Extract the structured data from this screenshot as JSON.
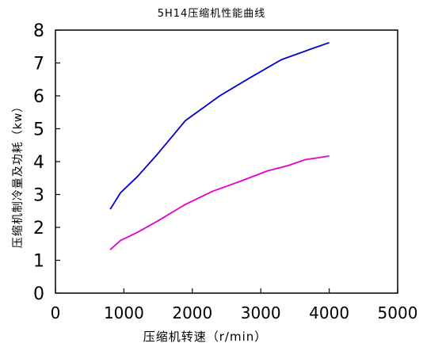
{
  "chart_data": {
    "type": "line",
    "title": "5H14压缩机性能曲线",
    "xlabel": "压缩机转速（r/min）",
    "ylabel": "压缩机制冷量及功耗（kw）",
    "xlim": [
      0,
      5000
    ],
    "ylim": [
      0,
      8
    ],
    "xticks": [
      "0",
      "1000",
      "2000",
      "3000",
      "4000",
      "5000"
    ],
    "yticks": [
      "0",
      "1",
      "2",
      "3",
      "4",
      "5",
      "6",
      "7",
      "8"
    ],
    "grid": false,
    "series": [
      {
        "color": "#0000cc",
        "x": [
          800,
          950,
          1200,
          1500,
          1900,
          2400,
          2800,
          3300,
          3700,
          4000
        ],
        "y": [
          2.55,
          3.05,
          3.55,
          4.25,
          5.25,
          6.0,
          6.5,
          7.1,
          7.4,
          7.62
        ]
      },
      {
        "color": "#e000d0",
        "x": [
          800,
          950,
          1200,
          1500,
          1900,
          2300,
          2700,
          3100,
          3400,
          3650,
          3850,
          4000
        ],
        "y": [
          1.32,
          1.6,
          1.85,
          2.2,
          2.7,
          3.1,
          3.4,
          3.72,
          3.88,
          4.06,
          4.12,
          4.17
        ]
      }
    ]
  }
}
